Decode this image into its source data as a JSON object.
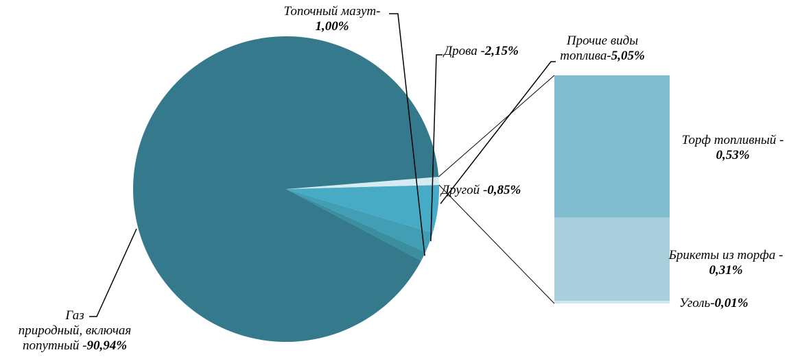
{
  "chart_data": {
    "type": "pie",
    "variant": "bar-of-pie",
    "legend": "none",
    "slices": [
      {
        "name": "Газ природный, включая попутный",
        "label_lines": [
          "Газ",
          "природный, включая",
          "попутный"
        ],
        "sep": " -",
        "value_text": "90,94%",
        "value": 90.94,
        "color": "#347A8C"
      },
      {
        "name": "Топочный мазут",
        "label_lines": [
          "Топочный мазут-"
        ],
        "sep": "",
        "value_text": "1,00%",
        "value": 1.0,
        "color": "#3A8EA0"
      },
      {
        "name": "Дрова",
        "label_lines": [
          "Дрова"
        ],
        "sep": " -",
        "value_text": "2,15%",
        "value": 2.15,
        "color": "#419EB4"
      },
      {
        "name": "Прочие виды топлива",
        "label_lines": [
          "Прочие виды",
          "топлива"
        ],
        "sep": "-",
        "value_text": "5,05%",
        "value": 5.05,
        "color": "#48ABC5"
      },
      {
        "name": "Другой",
        "label_lines": [
          "Другой"
        ],
        "sep": " -",
        "value_text": "0,85%",
        "value": 0.85,
        "color": "#D6EBF1"
      }
    ],
    "breakdown": [
      {
        "name": "Торф топливный",
        "label_lines": [
          "Торф топливный -"
        ],
        "value_text": "0,53%",
        "value": 0.53,
        "color": "#82BDCF"
      },
      {
        "name": "Брикеты из торфа",
        "label_lines": [
          "Брикеты из торфа -"
        ],
        "value_text": "0,31%",
        "value": 0.31,
        "color": "#A9CFDD"
      },
      {
        "name": "Уголь",
        "label_lines": [
          "Уголь"
        ],
        "sep": "-",
        "value_text": "0,01%",
        "value": 0.01,
        "color": "#D0E7EF"
      }
    ]
  }
}
